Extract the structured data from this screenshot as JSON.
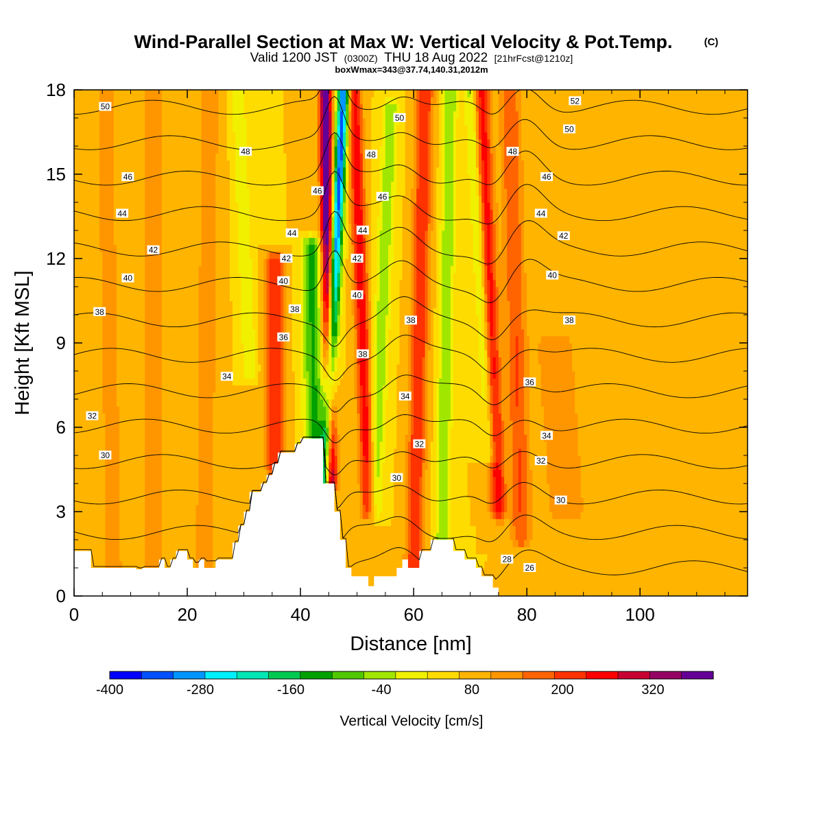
{
  "chart_data": {
    "type": "heatmap",
    "title": "Wind-Parallel Section at Max W: Vertical Velocity & Pot.Temp.",
    "title_mark": "(C)",
    "subtitle_parts": [
      "Valid 1200 JST",
      "(0300Z)",
      "THU 18 Aug 2022",
      "[21hrFcst@1210z]"
    ],
    "subtitle2": "boxWmax=343@37.74,140.31,2012m",
    "xlabel": "Distance [nm]",
    "ylabel": "Height [Kft MSL]",
    "xlim": [
      0,
      119
    ],
    "ylim": [
      0,
      18
    ],
    "x_ticks": [
      "0",
      "20",
      "40",
      "60",
      "80",
      "100"
    ],
    "y_ticks": [
      "0",
      "3",
      "6",
      "9",
      "12",
      "15",
      "18"
    ],
    "colorbar": {
      "label": "Vertical Velocity [cm/s]",
      "tick_labels": [
        "-400",
        "-280",
        "-160",
        "-40",
        "80",
        "200",
        "320"
      ],
      "levels": [
        -400,
        -360,
        -320,
        -280,
        -240,
        -200,
        -160,
        -120,
        -80,
        -40,
        0,
        40,
        80,
        120,
        160,
        200,
        240,
        280,
        320,
        360
      ],
      "colors": [
        "#0000ff",
        "#0050ff",
        "#0096ff",
        "#00f0ff",
        "#00e6b4",
        "#00c850",
        "#00a000",
        "#50c800",
        "#a0e600",
        "#f0f000",
        "#ffdc00",
        "#ffb400",
        "#ff9600",
        "#ff6400",
        "#ff3200",
        "#ff0000",
        "#c80032",
        "#960064",
        "#640096"
      ]
    },
    "background_w": 40,
    "terrain": [
      [
        0,
        1.6
      ],
      [
        3,
        1.6
      ],
      [
        3,
        1.0
      ],
      [
        11,
        1.0
      ],
      [
        11,
        0.95
      ],
      [
        12,
        0.95
      ],
      [
        12,
        1.0
      ],
      [
        15,
        1.0
      ],
      [
        15,
        1.3
      ],
      [
        16,
        1.3
      ],
      [
        16,
        1.0
      ],
      [
        17,
        1.0
      ],
      [
        17,
        1.3
      ],
      [
        18,
        1.3
      ],
      [
        18,
        1.6
      ],
      [
        20,
        1.6
      ],
      [
        20,
        1.3
      ],
      [
        21,
        1.3
      ],
      [
        21,
        1.0
      ],
      [
        22,
        1.0
      ],
      [
        22,
        1.3
      ],
      [
        23,
        1.3
      ],
      [
        23,
        1.0
      ],
      [
        25,
        1.0
      ],
      [
        25,
        1.3
      ],
      [
        28,
        1.3
      ],
      [
        28,
        1.9
      ],
      [
        29,
        1.9
      ],
      [
        29,
        2.5
      ],
      [
        30,
        2.5
      ],
      [
        30,
        3.0
      ],
      [
        31,
        3.0
      ],
      [
        31,
        3.7
      ],
      [
        33,
        3.7
      ],
      [
        33,
        4.0
      ],
      [
        34,
        4.0
      ],
      [
        34,
        4.3
      ],
      [
        35,
        4.3
      ],
      [
        35,
        4.7
      ],
      [
        36,
        4.7
      ],
      [
        36,
        5.1
      ],
      [
        39,
        5.1
      ],
      [
        39,
        5.4
      ],
      [
        40,
        5.4
      ],
      [
        40,
        5.6
      ],
      [
        44,
        5.6
      ],
      [
        44,
        4.0
      ],
      [
        46,
        4.0
      ],
      [
        46,
        3.0
      ],
      [
        47,
        3.0
      ],
      [
        47,
        2.0
      ],
      [
        48,
        2.0
      ],
      [
        48,
        1.0
      ],
      [
        49,
        1.0
      ],
      [
        49,
        0.7
      ],
      [
        52,
        0.7
      ],
      [
        52,
        0.35
      ],
      [
        53,
        0.35
      ],
      [
        53,
        0.7
      ],
      [
        57,
        0.7
      ],
      [
        57,
        1.0
      ],
      [
        58,
        1.0
      ],
      [
        58,
        1.3
      ],
      [
        59,
        1.3
      ],
      [
        59,
        1.0
      ],
      [
        61,
        1.0
      ],
      [
        61,
        1.6
      ],
      [
        63,
        1.6
      ],
      [
        63,
        2.0
      ],
      [
        67,
        2.0
      ],
      [
        67,
        1.6
      ],
      [
        69,
        1.6
      ],
      [
        69,
        1.3
      ],
      [
        71,
        1.3
      ],
      [
        71,
        1.0
      ],
      [
        72,
        1.0
      ],
      [
        72,
        0.7
      ],
      [
        74,
        0.7
      ],
      [
        74,
        0.3
      ],
      [
        75,
        0.3
      ],
      [
        75,
        0.0
      ],
      [
        119,
        0.0
      ]
    ],
    "w_features": [
      {
        "x0": 45.3,
        "x1": 44.4,
        "y0": 4.0,
        "y1": 18.0,
        "sx": 0.8,
        "amp": 340
      },
      {
        "x0": 44.3,
        "x1": 47.6,
        "y0": 4.0,
        "y1": 18.0,
        "sx": 0.75,
        "amp": -380
      },
      {
        "x0": 42.5,
        "x1": 42.0,
        "y0": 5.6,
        "y1": 12.5,
        "sx": 1.3,
        "amp": -170
      },
      {
        "x0": 31.0,
        "x1": 29.0,
        "y0": 8.0,
        "y1": 18.0,
        "sx": 0.9,
        "amp": -80
      },
      {
        "x0": 35.5,
        "x1": 35.5,
        "y0": 4.5,
        "y1": 12.0,
        "sx": 1.2,
        "amp": 150
      },
      {
        "x0": 52.0,
        "x1": 49.5,
        "y0": 3.0,
        "y1": 18.0,
        "sx": 0.9,
        "amp": 190
      },
      {
        "x0": 53.0,
        "x1": 56.0,
        "y0": 3.0,
        "y1": 17.5,
        "sx": 1.0,
        "amp": -110
      },
      {
        "x0": 60.0,
        "x1": 62.0,
        "y0": 0.7,
        "y1": 18.0,
        "sx": 1.1,
        "amp": 160
      },
      {
        "x0": 65.0,
        "x1": 66.5,
        "y0": 1.5,
        "y1": 18.0,
        "sx": 0.9,
        "amp": -120
      },
      {
        "x0": 75.0,
        "x1": 72.0,
        "y0": 3.0,
        "y1": 18.0,
        "sx": 1.0,
        "amp": 180
      },
      {
        "x0": 73.5,
        "x1": 70.0,
        "y0": 5.0,
        "y1": 18.0,
        "sx": 0.8,
        "amp": -100
      },
      {
        "x0": 79.0,
        "x1": 77.0,
        "y0": 2.0,
        "y1": 18.0,
        "sx": 1.3,
        "amp": 120
      },
      {
        "x0": 7.0,
        "x1": 5.5,
        "y0": 1.0,
        "y1": 18.0,
        "sx": 1.4,
        "amp": 60
      },
      {
        "x0": 14.0,
        "x1": 14.0,
        "y0": 1.0,
        "y1": 18.0,
        "sx": 1.4,
        "amp": 60
      },
      {
        "x0": 23.0,
        "x1": 24.0,
        "y0": 1.0,
        "y1": 18.0,
        "sx": 1.4,
        "amp": 65
      },
      {
        "x0": 87.0,
        "x1": 85.0,
        "y0": 3.0,
        "y1": 9.0,
        "sx": 2.5,
        "amp": 80
      }
    ],
    "theta_contours": {
      "levels": [
        26,
        28,
        30,
        32,
        34,
        36,
        38,
        40,
        42,
        44,
        46,
        48,
        50,
        52
      ],
      "labels": [
        {
          "text": "50",
          "x": 5.5,
          "y": 17.4
        },
        {
          "text": "48",
          "x": 30.3,
          "y": 15.8
        },
        {
          "text": "46",
          "x": 9.5,
          "y": 14.9
        },
        {
          "text": "44",
          "x": 8.5,
          "y": 13.6
        },
        {
          "text": "42",
          "x": 14.0,
          "y": 12.3
        },
        {
          "text": "40",
          "x": 9.5,
          "y": 11.3
        },
        {
          "text": "38",
          "x": 4.5,
          "y": 10.1
        },
        {
          "text": "34",
          "x": 27.0,
          "y": 7.8
        },
        {
          "text": "32",
          "x": 3.2,
          "y": 6.4
        },
        {
          "text": "30",
          "x": 5.5,
          "y": 5.0
        },
        {
          "text": "46",
          "x": 43.0,
          "y": 14.4
        },
        {
          "text": "44",
          "x": 38.5,
          "y": 12.9
        },
        {
          "text": "42",
          "x": 37.5,
          "y": 12.0
        },
        {
          "text": "40",
          "x": 37.0,
          "y": 11.2
        },
        {
          "text": "38",
          "x": 39.0,
          "y": 10.2
        },
        {
          "text": "36",
          "x": 37.0,
          "y": 9.2
        },
        {
          "text": "42",
          "x": 50.0,
          "y": 12.0
        },
        {
          "text": "40",
          "x": 50.0,
          "y": 10.7
        },
        {
          "text": "44",
          "x": 51.0,
          "y": 13.0
        },
        {
          "text": "48",
          "x": 52.5,
          "y": 15.7
        },
        {
          "text": "46",
          "x": 54.5,
          "y": 14.2
        },
        {
          "text": "50",
          "x": 57.5,
          "y": 17.0
        },
        {
          "text": "38",
          "x": 51.0,
          "y": 8.6
        },
        {
          "text": "38",
          "x": 59.5,
          "y": 9.8
        },
        {
          "text": "34",
          "x": 58.5,
          "y": 7.1
        },
        {
          "text": "32",
          "x": 61.0,
          "y": 5.4
        },
        {
          "text": "30",
          "x": 57.0,
          "y": 4.2
        },
        {
          "text": "52",
          "x": 88.5,
          "y": 17.6
        },
        {
          "text": "50",
          "x": 87.5,
          "y": 16.6
        },
        {
          "text": "48",
          "x": 77.5,
          "y": 15.8
        },
        {
          "text": "46",
          "x": 83.5,
          "y": 14.9
        },
        {
          "text": "44",
          "x": 82.5,
          "y": 13.6
        },
        {
          "text": "42",
          "x": 86.5,
          "y": 12.8
        },
        {
          "text": "40",
          "x": 84.5,
          "y": 11.4
        },
        {
          "text": "38",
          "x": 87.5,
          "y": 9.8
        },
        {
          "text": "36",
          "x": 80.5,
          "y": 7.6
        },
        {
          "text": "34",
          "x": 83.5,
          "y": 5.7
        },
        {
          "text": "32",
          "x": 82.5,
          "y": 4.8
        },
        {
          "text": "30",
          "x": 86.0,
          "y": 3.4
        },
        {
          "text": "28",
          "x": 76.5,
          "y": 1.3
        },
        {
          "text": "26",
          "x": 80.5,
          "y": 1.0
        }
      ]
    }
  }
}
